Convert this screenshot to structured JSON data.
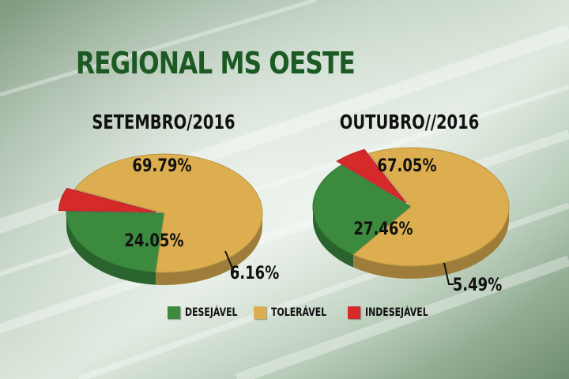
{
  "title": "REGIONAL MS OESTE",
  "colors": {
    "desejavel": "#3b8a3e",
    "toleravel": "#dcae50",
    "indesejavel": "#d42a2a",
    "title": "#1b5a22"
  },
  "chart_data": [
    {
      "type": "pie",
      "title": "SETEMBRO/2016",
      "categories": [
        "DESEJÁVEL",
        "TOLERÁVEL",
        "INDESEJÁVEL"
      ],
      "values": [
        24.05,
        69.79,
        6.16
      ],
      "labels": [
        "24.05%",
        "69.79%",
        "6.16%"
      ]
    },
    {
      "type": "pie",
      "title": "OUTUBRO//2016",
      "categories": [
        "DESEJÁVEL",
        "TOLERÁVEL",
        "INDESEJÁVEL"
      ],
      "values": [
        27.46,
        67.05,
        5.49
      ],
      "labels": [
        "27.46%",
        "67.05%",
        "5.49%"
      ]
    }
  ],
  "legend": [
    {
      "label": "DESEJÁVEL",
      "color": "#3b8a3e"
    },
    {
      "label": "TOLERÁVEL",
      "color": "#dcae50"
    },
    {
      "label": "INDESEJÁVEL",
      "color": "#d42a2a"
    }
  ]
}
